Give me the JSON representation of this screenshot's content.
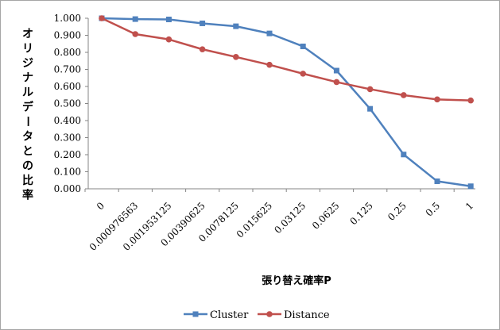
{
  "chart_data": {
    "type": "line",
    "title": "",
    "xlabel": "張り替え確率P",
    "ylabel": "オリジナルデータとの比率",
    "categories": [
      "0",
      "0.000976563",
      "0.001953125",
      "0.00390625",
      "0.0078125",
      "0.015625",
      "0.03125",
      "0.0625",
      "0.125",
      "0.25",
      "0.5",
      "1"
    ],
    "ylim": [
      0,
      1
    ],
    "yticks": [
      0,
      0.1,
      0.2,
      0.3,
      0.4,
      0.5,
      0.6,
      0.7,
      0.8,
      0.9,
      1.0
    ],
    "ytick_labels": [
      "0.000",
      "0.100",
      "0.200",
      "0.300",
      "0.400",
      "0.500",
      "0.600",
      "0.700",
      "0.800",
      "0.900",
      "1.000"
    ],
    "grid": false,
    "legend_position": "bottom",
    "series": [
      {
        "name": "Cluster",
        "color": "#4f81bd",
        "marker": "square",
        "values": [
          1.0,
          0.995,
          0.993,
          0.97,
          0.953,
          0.911,
          0.835,
          0.693,
          0.469,
          0.201,
          0.044,
          0.015
        ]
      },
      {
        "name": "Distance",
        "color": "#c0504d",
        "marker": "circle",
        "values": [
          1.0,
          0.907,
          0.876,
          0.818,
          0.773,
          0.727,
          0.675,
          0.626,
          0.584,
          0.549,
          0.524,
          0.518
        ]
      }
    ]
  }
}
